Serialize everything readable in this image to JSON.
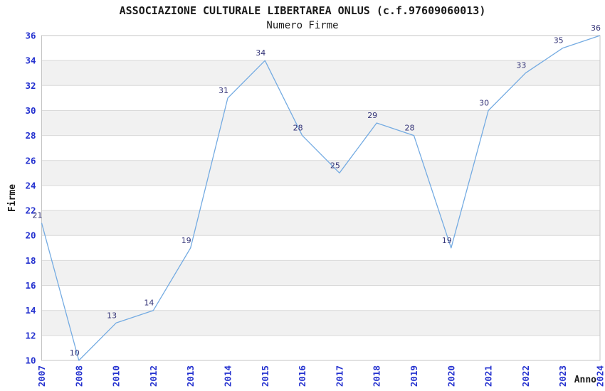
{
  "chart_data": {
    "type": "line",
    "title": "ASSOCIAZIONE CULTURALE LIBERTAREA ONLUS (c.f.97609060013)",
    "subtitle": "Numero Firme",
    "xlabel": "Anno",
    "ylabel": "Firme",
    "x": [
      "2007",
      "2008",
      "2010",
      "2012",
      "2013",
      "2014",
      "2015",
      "2016",
      "2017",
      "2018",
      "2019",
      "2020",
      "2021",
      "2022",
      "2023",
      "2024"
    ],
    "values": [
      21,
      10,
      13,
      14,
      19,
      31,
      34,
      28,
      25,
      29,
      28,
      19,
      30,
      33,
      35,
      36
    ],
    "ylim": [
      10,
      36
    ],
    "ytick_step": 2,
    "grid": "horizontal",
    "bands": "alternating-2-unit",
    "legend": "none",
    "colors": {
      "line": "#74abe2",
      "band": "#f1f1f1",
      "grid": "#d9d9d9",
      "border": "#c4c4c4",
      "tick_label": "#2431cf",
      "data_label": "#333377",
      "title": "#1a1a1a",
      "axis_title": "#1a1a1a"
    }
  }
}
